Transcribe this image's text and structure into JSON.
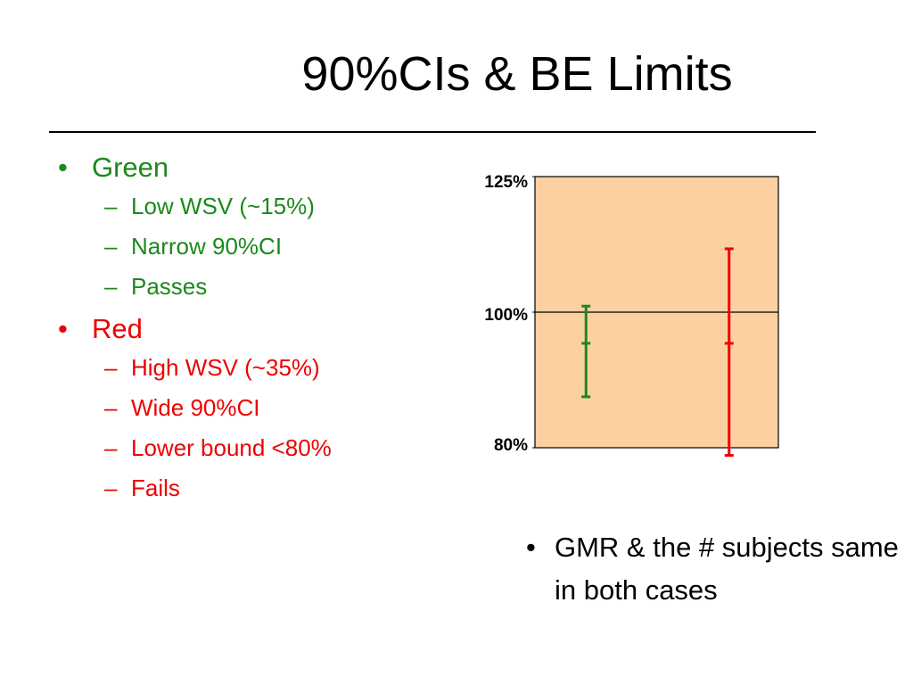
{
  "title": "90%CIs & BE Limits",
  "bullets": [
    {
      "text": "Green",
      "color": "#1a8a1a",
      "items": [
        "Low WSV (~15%)",
        "Narrow 90%CI",
        "Passes"
      ]
    },
    {
      "text": "Red",
      "color": "#ee0000",
      "items": [
        "High WSV (~35%)",
        "Wide 90%CI",
        "Lower bound <80%",
        "Fails"
      ]
    }
  ],
  "note": "GMR & the # subjects same in both cases",
  "chart_data": {
    "type": "errorbar",
    "log_scale": true,
    "background": "#fdd0a2",
    "ylim": [
      80,
      125
    ],
    "yticks": [
      {
        "value": 125,
        "label": "125%"
      },
      {
        "value": 100,
        "label": "100%"
      },
      {
        "value": 80,
        "label": "80%"
      }
    ],
    "reference_line": 100,
    "series": [
      {
        "color": "#1a8a1a",
        "point": 95,
        "lower": 87,
        "upper": 101
      },
      {
        "color": "#ee0000",
        "point": 95,
        "lower": 79,
        "upper": 111
      }
    ]
  }
}
